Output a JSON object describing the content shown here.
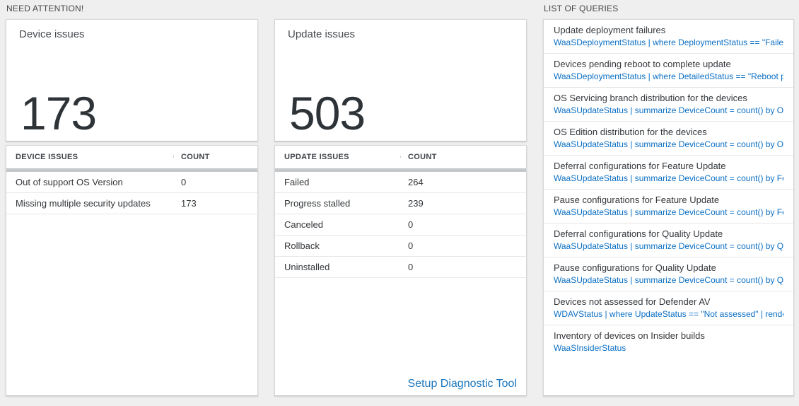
{
  "sections": {
    "need_attention": "NEED ATTENTION!",
    "list_of_queries": "LIST OF QUERIES"
  },
  "device_issues": {
    "title": "Device issues",
    "count": "173",
    "table": {
      "headers": [
        "DEVICE ISSUES",
        "COUNT"
      ],
      "rows": [
        {
          "label": "Out of support OS Version",
          "count": "0"
        },
        {
          "label": "Missing multiple security updates",
          "count": "173"
        }
      ]
    }
  },
  "update_issues": {
    "title": "Update issues",
    "count": "503",
    "table": {
      "headers": [
        "UPDATE ISSUES",
        "COUNT"
      ],
      "rows": [
        {
          "label": "Failed",
          "count": "264"
        },
        {
          "label": "Progress stalled",
          "count": "239"
        },
        {
          "label": "Canceled",
          "count": "0"
        },
        {
          "label": "Rollback",
          "count": "0"
        },
        {
          "label": "Uninstalled",
          "count": "0"
        }
      ]
    },
    "setup_link": "Setup Diagnostic Tool"
  },
  "queries": {
    "items": [
      {
        "title": "Update deployment failures",
        "query": "WaaSDeploymentStatus | where DeploymentStatus == \"Failed\" |..."
      },
      {
        "title": "Devices pending reboot to complete update",
        "query": "WaaSDeploymentStatus | where DetailedStatus == \"Reboot pend..."
      },
      {
        "title": "OS Servicing branch distribution for the devices",
        "query": "WaaSUpdateStatus | summarize DeviceCount = count() by OSSer..."
      },
      {
        "title": "OS Edition distribution for the devices",
        "query": "WaaSUpdateStatus | summarize DeviceCount = count() by OSEdit..."
      },
      {
        "title": "Deferral configurations for Feature Update",
        "query": "WaaSUpdateStatus | summarize DeviceCount = count() by Featur..."
      },
      {
        "title": "Pause configurations for Feature Update",
        "query": "WaaSUpdateStatus | summarize DeviceCount = count() by Featur..."
      },
      {
        "title": "Deferral configurations for Quality Update",
        "query": "WaaSUpdateStatus | summarize DeviceCount = count() by Qualit..."
      },
      {
        "title": "Pause configurations for Quality Update",
        "query": "WaaSUpdateStatus | summarize DeviceCount = count() by Qualit..."
      },
      {
        "title": "Devices not assessed for Defender AV",
        "query": "WDAVStatus | where UpdateStatus == \"Not assessed\" | render ta..."
      },
      {
        "title": "Inventory of devices on Insider builds",
        "query": "WaaSInsiderStatus"
      }
    ]
  },
  "colors": {
    "accent_blue": "#0b6fc4",
    "link_blue": "#1a75bc",
    "number_dark": "#2e3338",
    "page_background": "#efefef",
    "scrollbar_gray": "#c5c8cb"
  }
}
